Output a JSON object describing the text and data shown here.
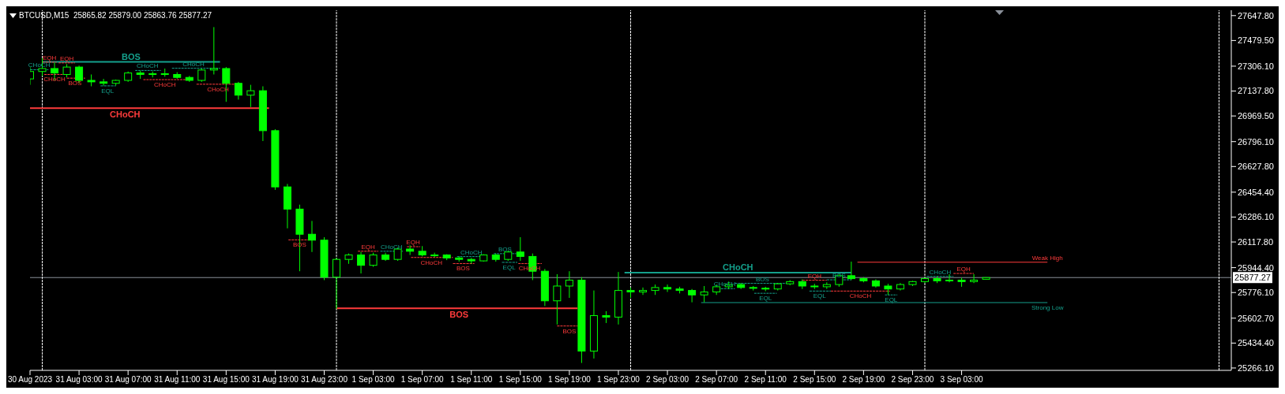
{
  "chart_data": {
    "type": "candlestick",
    "title": "BTCUSD,M15  25865.82 25879.00 25863.76 25877.27",
    "color": "#00ff00",
    "x": [
      "2023-08-30T23:00",
      "2023-08-31T00:00",
      "2023-08-31T01:00",
      "2023-08-31T02:00",
      "2023-08-31T03:00",
      "2023-08-31T04:00",
      "2023-08-31T05:00",
      "2023-08-31T06:00",
      "2023-08-31T07:00",
      "2023-08-31T08:00",
      "2023-08-31T09:00",
      "2023-08-31T10:00",
      "2023-08-31T11:00",
      "2023-08-31T12:00",
      "2023-08-31T13:00",
      "2023-08-31T14:00",
      "2023-08-31T15:00",
      "2023-08-31T16:00",
      "2023-08-31T17:00",
      "2023-08-31T18:00",
      "2023-08-31T19:00",
      "2023-08-31T20:00",
      "2023-08-31T21:00",
      "2023-08-31T22:00",
      "2023-08-31T23:00",
      "2023-09-01T00:00",
      "2023-09-01T01:00",
      "2023-09-01T02:00",
      "2023-09-01T03:00",
      "2023-09-01T04:00",
      "2023-09-01T05:00",
      "2023-09-01T06:00",
      "2023-09-01T07:00",
      "2023-09-01T08:00",
      "2023-09-01T09:00",
      "2023-09-01T10:00",
      "2023-09-01T11:00",
      "2023-09-01T12:00",
      "2023-09-01T13:00",
      "2023-09-01T14:00",
      "2023-09-01T15:00",
      "2023-09-01T16:00",
      "2023-09-01T17:00",
      "2023-09-01T18:00",
      "2023-09-01T19:00",
      "2023-09-01T20:00",
      "2023-09-01T21:00",
      "2023-09-01T22:00",
      "2023-09-01T23:00",
      "2023-09-02T00:00",
      "2023-09-02T01:00",
      "2023-09-02T02:00",
      "2023-09-02T03:00",
      "2023-09-02T04:00",
      "2023-09-02T05:00",
      "2023-09-02T06:00",
      "2023-09-02T07:00",
      "2023-09-02T08:00",
      "2023-09-02T09:00",
      "2023-09-02T10:00",
      "2023-09-02T11:00",
      "2023-09-02T12:00",
      "2023-09-02T13:00",
      "2023-09-02T14:00",
      "2023-09-02T15:00",
      "2023-09-02T16:00",
      "2023-09-02T17:00",
      "2023-09-02T18:00",
      "2023-09-02T19:00",
      "2023-09-02T20:00",
      "2023-09-02T21:00",
      "2023-09-02T22:00",
      "2023-09-02T23:00",
      "2023-09-03T00:00",
      "2023-09-03T01:00",
      "2023-09-03T02:00",
      "2023-09-03T03:00",
      "2023-09-03T04:00",
      "2023-09-03T05:00"
    ],
    "ohlc": [
      [
        27220,
        27300,
        27180,
        27270
      ],
      [
        27270,
        27360,
        27240,
        27290
      ],
      [
        27290,
        27330,
        27210,
        27260
      ],
      [
        27250,
        27320,
        27230,
        27300
      ],
      [
        27300,
        27310,
        27190,
        27210
      ],
      [
        27210,
        27250,
        27170,
        27200
      ],
      [
        27200,
        27220,
        27175,
        27190
      ],
      [
        27190,
        27215,
        27175,
        27210
      ],
      [
        27210,
        27270,
        27200,
        27260
      ],
      [
        27260,
        27275,
        27220,
        27250
      ],
      [
        27250,
        27270,
        27230,
        27255
      ],
      [
        27255,
        27290,
        27235,
        27250
      ],
      [
        27250,
        27265,
        27220,
        27230
      ],
      [
        27230,
        27240,
        27200,
        27210
      ],
      [
        27210,
        27290,
        27200,
        27280
      ],
      [
        27280,
        27570,
        27250,
        27290
      ],
      [
        27290,
        27300,
        27065,
        27190
      ],
      [
        27190,
        27200,
        27080,
        27110
      ],
      [
        27110,
        27180,
        27030,
        27140
      ],
      [
        27140,
        27170,
        26800,
        26870
      ],
      [
        26870,
        26880,
        26470,
        26490
      ],
      [
        26490,
        26510,
        26210,
        26340
      ],
      [
        26340,
        26370,
        25920,
        26170
      ],
      [
        26170,
        26260,
        26050,
        26130
      ],
      [
        26130,
        26150,
        25860,
        25880
      ],
      [
        25880,
        26010,
        25665,
        26000
      ],
      [
        26000,
        26040,
        25970,
        26030
      ],
      [
        26030,
        26050,
        25905,
        25960
      ],
      [
        25960,
        26045,
        25950,
        26030
      ],
      [
        26030,
        26045,
        25990,
        26000
      ],
      [
        26000,
        26080,
        25990,
        26070
      ],
      [
        26070,
        26095,
        26030,
        26055
      ],
      [
        26055,
        26090,
        26020,
        26030
      ],
      [
        26030,
        26045,
        26015,
        26030
      ],
      [
        26030,
        26035,
        25995,
        26010
      ],
      [
        26010,
        26020,
        25985,
        26000
      ],
      [
        26000,
        26010,
        25970,
        25990
      ],
      [
        25990,
        26035,
        25985,
        26030
      ],
      [
        26030,
        26040,
        25985,
        26000
      ],
      [
        26000,
        26060,
        25990,
        26050
      ],
      [
        26050,
        26150,
        25990,
        26020
      ],
      [
        26020,
        26040,
        25860,
        25920
      ],
      [
        25920,
        25935,
        25685,
        25720
      ],
      [
        25720,
        25900,
        25560,
        25820
      ],
      [
        25820,
        25920,
        25740,
        25860
      ],
      [
        25860,
        25880,
        25300,
        25380
      ],
      [
        25380,
        25790,
        25330,
        25620
      ],
      [
        25620,
        25650,
        25570,
        25610
      ],
      [
        25610,
        25915,
        25560,
        25790
      ],
      [
        25790,
        25810,
        25740,
        25780
      ],
      [
        25780,
        25810,
        25760,
        25790
      ],
      [
        25790,
        25830,
        25760,
        25810
      ],
      [
        25810,
        25830,
        25780,
        25800
      ],
      [
        25800,
        25815,
        25770,
        25790
      ],
      [
        25790,
        25800,
        25710,
        25760
      ],
      [
        25760,
        25820,
        25710,
        25780
      ],
      [
        25780,
        25830,
        25760,
        25815
      ],
      [
        25815,
        25850,
        25800,
        25830
      ],
      [
        25830,
        25840,
        25800,
        25810
      ],
      [
        25810,
        25820,
        25790,
        25805
      ],
      [
        25805,
        25815,
        25785,
        25800
      ],
      [
        25800,
        25840,
        25790,
        25835
      ],
      [
        25835,
        25860,
        25825,
        25850
      ],
      [
        25850,
        25865,
        25800,
        25820
      ],
      [
        25820,
        25835,
        25800,
        25815
      ],
      [
        25815,
        25845,
        25800,
        25830
      ],
      [
        25830,
        25900,
        25815,
        25890
      ],
      [
        25890,
        25985,
        25860,
        25870
      ],
      [
        25870,
        25880,
        25845,
        25855
      ],
      [
        25855,
        25865,
        25810,
        25820
      ],
      [
        25820,
        25835,
        25760,
        25800
      ],
      [
        25800,
        25840,
        25790,
        25830
      ],
      [
        25830,
        25855,
        25820,
        25850
      ],
      [
        25850,
        25880,
        25840,
        25870
      ],
      [
        25870,
        25885,
        25840,
        25855
      ],
      [
        25855,
        25900,
        25845,
        25860
      ],
      [
        25860,
        25875,
        25815,
        25850
      ],
      [
        25850,
        25900,
        25840,
        25860
      ],
      [
        25865.82,
        25879.0,
        25863.76,
        25877.27
      ]
    ],
    "series": [
      {
        "type": "line",
        "x": [
          "2023-08-31T00:00",
          "2023-08-31T14:30"
        ],
        "values": [
          27335,
          27335
        ],
        "color": "#14a08c",
        "line_style": "solid"
      },
      {
        "type": "line",
        "x": [
          "2023-08-30T23:00",
          "2023-08-31T18:30"
        ],
        "values": [
          27022,
          27022
        ],
        "color": "#ff3b3b",
        "line_style": "solid"
      },
      {
        "type": "line",
        "x": [
          "2023-09-01T00:00",
          "2023-09-01T19:40"
        ],
        "values": [
          25670,
          25670
        ],
        "color": "#ff3b3b",
        "line_style": "solid"
      },
      {
        "type": "line",
        "x": [
          "2023-09-01T23:30",
          "2023-09-02T18:00"
        ],
        "values": [
          25910,
          25910
        ],
        "color": "#14a08c",
        "line_style": "solid"
      },
      {
        "type": "line",
        "x": [
          "2023-09-02T18:30",
          "2023-09-03T10:00"
        ],
        "values": [
          25981,
          25981
        ],
        "color": "#ff3b3b",
        "line_style": "solid"
      },
      {
        "type": "line",
        "x": [
          "2023-09-02T05:45",
          "2023-09-03T10:00"
        ],
        "values": [
          25708,
          25708
        ],
        "color": "#14a08c",
        "line_style": "solid"
      },
      {
        "type": "line",
        "x": [
          "2023-08-30T23:00",
          "2023-08-31T00:30"
        ],
        "values": [
          27282,
          27282
        ],
        "color": "#14a08c",
        "line_style": "dashed"
      },
      {
        "type": "line",
        "x": [
          "2023-08-31T00:00",
          "2023-08-31T01:10"
        ],
        "values": [
          27333,
          27333
        ],
        "color": "#ff3b3b",
        "line_style": "dashed"
      },
      {
        "type": "line",
        "x": [
          "2023-08-31T01:20",
          "2023-08-31T02:40"
        ],
        "values": [
          27328,
          27328
        ],
        "color": "#ff3b3b",
        "line_style": "dashed"
      },
      {
        "type": "line",
        "x": [
          "2023-08-31T00:10",
          "2023-08-31T01:50"
        ],
        "values": [
          27250,
          27250
        ],
        "color": "#ff3b3b",
        "line_style": "dashed"
      },
      {
        "type": "line",
        "x": [
          "2023-08-31T02:00",
          "2023-08-31T03:30"
        ],
        "values": [
          27225,
          27225
        ],
        "color": "#ff3b3b",
        "line_style": "dashed"
      },
      {
        "type": "line",
        "x": [
          "2023-08-31T04:45",
          "2023-08-31T06:00"
        ],
        "values": [
          27173,
          27173
        ],
        "color": "#14a08c",
        "line_style": "dashed"
      },
      {
        "type": "line",
        "x": [
          "2023-08-31T07:35",
          "2023-08-31T09:40"
        ],
        "values": [
          27277,
          27277
        ],
        "color": "#14a08c",
        "line_style": "dashed"
      },
      {
        "type": "line",
        "x": [
          "2023-08-31T10:35",
          "2023-08-31T14:30"
        ],
        "values": [
          27292,
          27292
        ],
        "color": "#14a08c",
        "line_style": "dashed"
      },
      {
        "type": "line",
        "x": [
          "2023-08-31T08:15",
          "2023-08-31T11:50"
        ],
        "values": [
          27215,
          27215
        ],
        "color": "#ff3b3b",
        "line_style": "dashed"
      },
      {
        "type": "line",
        "x": [
          "2023-08-31T12:35",
          "2023-08-31T16:05"
        ],
        "values": [
          27184,
          27184
        ],
        "color": "#ff3b3b",
        "line_style": "dashed"
      },
      {
        "type": "line",
        "x": [
          "2023-08-31T20:05",
          "2023-08-31T22:00"
        ],
        "values": [
          26132,
          26132
        ],
        "color": "#ff3b3b",
        "line_style": "dashed"
      },
      {
        "type": "line",
        "x": [
          "2023-09-01T01:45",
          "2023-09-01T03:25"
        ],
        "values": [
          26055,
          26055
        ],
        "color": "#ff3b3b",
        "line_style": "dashed"
      },
      {
        "type": "line",
        "x": [
          "2023-09-01T03:35",
          "2023-09-01T05:25"
        ],
        "values": [
          26055,
          26055
        ],
        "color": "#14a08c",
        "line_style": "dashed"
      },
      {
        "type": "line",
        "x": [
          "2023-09-01T05:45",
          "2023-09-01T06:50"
        ],
        "values": [
          26086,
          26086
        ],
        "color": "#ff3b3b",
        "line_style": "dashed"
      },
      {
        "type": "line",
        "x": [
          "2023-09-01T06:05",
          "2023-09-01T09:30"
        ],
        "values": [
          26013,
          26013
        ],
        "color": "#ff3b3b",
        "line_style": "dashed"
      },
      {
        "type": "line",
        "x": [
          "2023-09-01T09:30",
          "2023-09-01T11:15"
        ],
        "values": [
          25972,
          25972
        ],
        "color": "#ff3b3b",
        "line_style": "dashed"
      },
      {
        "type": "line",
        "x": [
          "2023-09-01T09:50",
          "2023-09-01T12:10"
        ],
        "values": [
          26019,
          26019
        ],
        "color": "#14a08c",
        "line_style": "dashed"
      },
      {
        "type": "line",
        "x": [
          "2023-09-01T12:50",
          "2023-09-01T14:40"
        ],
        "values": [
          26039,
          26039
        ],
        "color": "#14a08c",
        "line_style": "dashed"
      },
      {
        "type": "line",
        "x": [
          "2023-09-01T13:30",
          "2023-09-01T14:45"
        ],
        "values": [
          25980,
          25980
        ],
        "color": "#14a08c",
        "line_style": "dashed"
      },
      {
        "type": "line",
        "x": [
          "2023-09-01T14:50",
          "2023-09-01T16:45"
        ],
        "values": [
          25972,
          25972
        ],
        "color": "#ff3b3b",
        "line_style": "dashed"
      },
      {
        "type": "line",
        "x": [
          "2023-09-01T18:00",
          "2023-09-01T19:40"
        ],
        "values": [
          25550,
          25550
        ],
        "color": "#ff3b3b",
        "line_style": "dashed"
      },
      {
        "type": "line",
        "x": [
          "2023-09-02T06:50",
          "2023-09-02T08:30"
        ],
        "values": [
          25802,
          25802
        ],
        "color": "#14a08c",
        "line_style": "dashed"
      },
      {
        "type": "line",
        "x": [
          "2023-09-02T08:30",
          "2023-09-02T13:00"
        ],
        "values": [
          25838,
          25838
        ],
        "color": "#14a08c",
        "line_style": "dashed"
      },
      {
        "type": "line",
        "x": [
          "2023-09-02T10:05",
          "2023-09-02T11:55"
        ],
        "values": [
          25771,
          25771
        ],
        "color": "#14a08c",
        "line_style": "dashed"
      },
      {
        "type": "line",
        "x": [
          "2023-09-02T14:00",
          "2023-09-02T16:00"
        ],
        "values": [
          25859,
          25859
        ],
        "color": "#ff3b3b",
        "line_style": "dashed"
      },
      {
        "type": "line",
        "x": [
          "2023-09-02T16:00",
          "2023-09-02T18:00"
        ],
        "values": [
          25862,
          25862
        ],
        "color": "#14a08c",
        "line_style": "dashed"
      },
      {
        "type": "line",
        "x": [
          "2023-09-02T14:35",
          "2023-09-02T16:20"
        ],
        "values": [
          25786,
          25786
        ],
        "color": "#14a08c",
        "line_style": "dashed"
      },
      {
        "type": "line",
        "x": [
          "2023-09-02T16:20",
          "2023-09-02T21:10"
        ],
        "values": [
          25786,
          25786
        ],
        "color": "#ff3b3b",
        "line_style": "dashed"
      },
      {
        "type": "line",
        "x": [
          "2023-09-02T20:45",
          "2023-09-02T21:45"
        ],
        "values": [
          25760,
          25760
        ],
        "color": "#14a08c",
        "line_style": "dashed"
      },
      {
        "type": "line",
        "x": [
          "2023-09-03T00:10",
          "2023-09-03T02:20"
        ],
        "values": [
          25885,
          25885
        ],
        "color": "#14a08c",
        "line_style": "dashed"
      },
      {
        "type": "line",
        "x": [
          "2023-09-03T02:20",
          "2023-09-03T04:00"
        ],
        "values": [
          25905,
          25905
        ],
        "color": "#ff3b3b",
        "line_style": "dashed"
      }
    ],
    "xlim": [
      "2023-08-30T23:00",
      "2023-09-04T01:00"
    ],
    "xticks": [
      {
        "value": "2023-08-30T23:00",
        "label": "30 Aug 2023"
      },
      {
        "value": "2023-08-31T03:00",
        "label": "31 Aug 03:00"
      },
      {
        "value": "2023-08-31T07:00",
        "label": "31 Aug 07:00"
      },
      {
        "value": "2023-08-31T11:00",
        "label": "31 Aug 11:00"
      },
      {
        "value": "2023-08-31T15:00",
        "label": "31 Aug 15:00"
      },
      {
        "value": "2023-08-31T19:00",
        "label": "31 Aug 19:00"
      },
      {
        "value": "2023-08-31T23:00",
        "label": "31 Aug 23:00"
      },
      {
        "value": "2023-09-01T03:00",
        "label": "1 Sep 03:00"
      },
      {
        "value": "2023-09-01T07:00",
        "label": "1 Sep 07:00"
      },
      {
        "value": "2023-09-01T11:00",
        "label": "1 Sep 11:00"
      },
      {
        "value": "2023-09-01T15:00",
        "label": "1 Sep 15:00"
      },
      {
        "value": "2023-09-01T19:00",
        "label": "1 Sep 19:00"
      },
      {
        "value": "2023-09-01T23:00",
        "label": "1 Sep 23:00"
      },
      {
        "value": "2023-09-02T03:00",
        "label": "2 Sep 03:00"
      },
      {
        "value": "2023-09-02T07:00",
        "label": "2 Sep 07:00"
      },
      {
        "value": "2023-09-02T11:00",
        "label": "2 Sep 11:00"
      },
      {
        "value": "2023-09-02T15:00",
        "label": "2 Sep 15:00"
      },
      {
        "value": "2023-09-02T19:00",
        "label": "2 Sep 19:00"
      },
      {
        "value": "2023-09-02T23:00",
        "label": "2 Sep 23:00"
      },
      {
        "value": "2023-09-03T03:00",
        "label": "3 Sep 03:00"
      }
    ],
    "ylim": [
      25250,
      27684
    ],
    "yticks": [
      {
        "value": 25266.1,
        "label": "25266.10"
      },
      {
        "value": 25434.4,
        "label": "25434.40"
      },
      {
        "value": 25602.7,
        "label": "25602.70"
      },
      {
        "value": 25776.1,
        "label": "25776.10"
      },
      {
        "value": 25944.4,
        "label": "25944.40"
      },
      {
        "value": 26117.8,
        "label": "26117.80"
      },
      {
        "value": 26286.1,
        "label": "26286.10"
      },
      {
        "value": 26454.4,
        "label": "26454.40"
      },
      {
        "value": 26627.8,
        "label": "26627.80"
      },
      {
        "value": 26796.1,
        "label": "26796.10"
      },
      {
        "value": 26969.5,
        "label": "26969.50"
      },
      {
        "value": 27137.8,
        "label": "27137.80"
      },
      {
        "value": 27306.1,
        "label": "27306.10"
      },
      {
        "value": 27479.5,
        "label": "27479.50"
      },
      {
        "value": 27647.8,
        "label": "27647.80"
      }
    ],
    "ref_lines": [
      {
        "axis": "y",
        "value": 25877.27,
        "label": "25877.27",
        "color": "#8a9099",
        "line_style": "solid"
      },
      {
        "axis": "x",
        "value": "2023-08-31T00:00",
        "color": "#ffffff",
        "line_style": "dashed"
      },
      {
        "axis": "x",
        "value": "2023-09-01T00:00",
        "color": "#ffffff",
        "line_style": "dashed"
      },
      {
        "axis": "x",
        "value": "2023-09-02T00:00",
        "color": "#ffffff",
        "line_style": "dashed"
      },
      {
        "axis": "x",
        "value": "2023-09-03T00:00",
        "color": "#ffffff",
        "line_style": "dashed"
      },
      {
        "axis": "x",
        "value": "2023-09-04T00:00",
        "color": "#ffffff",
        "line_style": "dashed"
      }
    ],
    "annotations": [
      {
        "text": "BOS",
        "x": "2023-08-31T07:15",
        "y": 27335
      },
      {
        "text": "CHoCH",
        "x": "2023-08-31T06:45",
        "y": 27022
      },
      {
        "text": "BOS",
        "x": "2023-09-01T10:00",
        "y": 25670
      },
      {
        "text": "CHoCH",
        "x": "2023-09-02T08:45",
        "y": 25910
      },
      {
        "text": "Weak High",
        "x": "2023-09-03T10:00",
        "y": 25981
      },
      {
        "text": "Strong Low",
        "x": "2023-09-03T10:00",
        "y": 25708
      },
      {
        "text": "CHoCH",
        "x": "2023-08-30T23:45",
        "y": 27282
      },
      {
        "text": "EQH",
        "x": "2023-08-31T00:35",
        "y": 27333
      },
      {
        "text": "EQH",
        "x": "2023-08-31T02:00",
        "y": 27328
      },
      {
        "text": "CHoCH",
        "x": "2023-08-31T01:00",
        "y": 27250
      },
      {
        "text": "BOS",
        "x": "2023-08-31T02:40",
        "y": 27225
      },
      {
        "text": "EQL",
        "x": "2023-08-31T05:20",
        "y": 27173
      },
      {
        "text": "CHoCH",
        "x": "2023-08-31T08:35",
        "y": 27277
      },
      {
        "text": "CHoCH",
        "x": "2023-08-31T12:20",
        "y": 27292
      },
      {
        "text": "CHoCH",
        "x": "2023-08-31T10:00",
        "y": 27215
      },
      {
        "text": "CHoCH",
        "x": "2023-08-31T14:20",
        "y": 27184
      },
      {
        "text": "BOS",
        "x": "2023-08-31T21:00",
        "y": 26132
      },
      {
        "text": "EQH",
        "x": "2023-09-01T02:35",
        "y": 26055
      },
      {
        "text": "CHoCH",
        "x": "2023-09-01T04:30",
        "y": 26055
      },
      {
        "text": "EQH",
        "x": "2023-09-01T06:15",
        "y": 26086
      },
      {
        "text": "CHoCH",
        "x": "2023-09-01T07:45",
        "y": 26013
      },
      {
        "text": "BOS",
        "x": "2023-09-01T10:20",
        "y": 25972
      },
      {
        "text": "CHoCH",
        "x": "2023-09-01T11:00",
        "y": 26019
      },
      {
        "text": "BOS",
        "x": "2023-09-01T13:45",
        "y": 26039
      },
      {
        "text": "EQL",
        "x": "2023-09-01T14:05",
        "y": 25980
      },
      {
        "text": "CHoCH",
        "x": "2023-09-01T15:45",
        "y": 25972
      },
      {
        "text": "BOS",
        "x": "2023-09-01T19:00",
        "y": 25550
      },
      {
        "text": "CHoCH",
        "x": "2023-09-02T07:40",
        "y": 25802
      },
      {
        "text": "BOS",
        "x": "2023-09-02T10:45",
        "y": 25838
      },
      {
        "text": "EQL",
        "x": "2023-09-02T11:00",
        "y": 25771
      },
      {
        "text": "EQH",
        "x": "2023-09-02T15:00",
        "y": 25859
      },
      {
        "text": "BOS",
        "x": "2023-09-02T17:00",
        "y": 25862
      },
      {
        "text": "EQL",
        "x": "2023-09-02T15:25",
        "y": 25786
      },
      {
        "text": "CHoCH",
        "x": "2023-09-02T18:45",
        "y": 25786
      },
      {
        "text": "EQL",
        "x": "2023-09-02T21:15",
        "y": 25760
      },
      {
        "text": "CHoCH",
        "x": "2023-09-03T01:15",
        "y": 25885
      },
      {
        "text": "EQH",
        "x": "2023-09-03T03:10",
        "y": 25905
      }
    ]
  }
}
